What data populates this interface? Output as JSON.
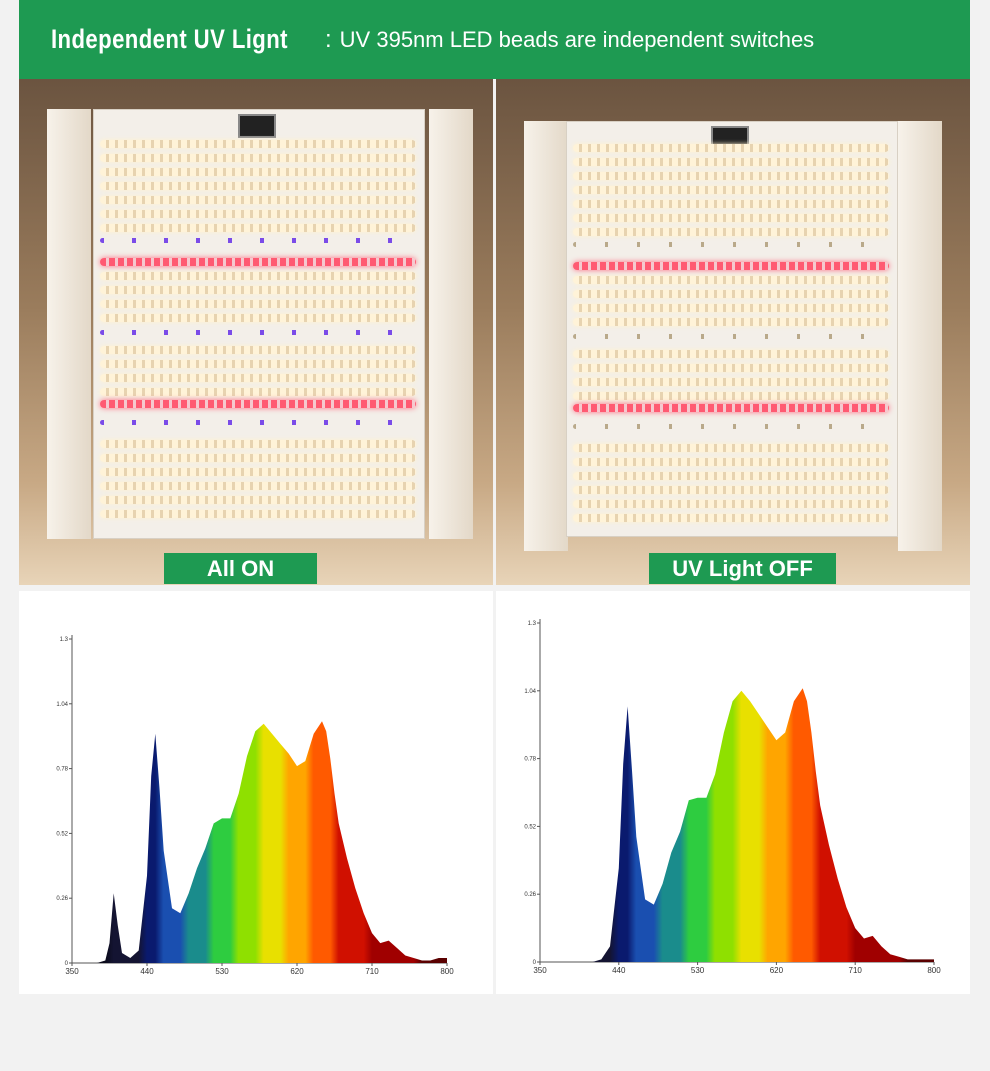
{
  "banner": {
    "title_bold": "Independent UV Lignt",
    "separator": ":",
    "title_rest": "UV 395nm LED beads are independent switches"
  },
  "panels": [
    {
      "label": "All ON",
      "uv_on": true
    },
    {
      "label": "UV Light OFF",
      "uv_on": false
    }
  ],
  "colors": {
    "accent_green": "#1e9a52",
    "led_warm": "#fff1d2",
    "led_red": "#ff4d6a",
    "led_uv": "#8a5cf0"
  },
  "chart_data": [
    {
      "type": "area",
      "title": "",
      "xlabel": "",
      "ylabel": "",
      "xlim": [
        350,
        800
      ],
      "ylim": [
        0,
        1.3
      ],
      "x_ticks": [
        "350",
        "440",
        "530",
        "620",
        "710",
        "800"
      ],
      "y_ticks": [
        "0",
        "0.26",
        "0.52",
        "0.78",
        "1.04",
        "1.3"
      ],
      "series": [
        {
          "x": [
            350,
            365,
            380,
            390,
            395,
            400,
            405,
            410,
            420,
            430,
            440,
            445,
            450,
            455,
            460,
            470,
            480,
            490,
            500,
            510,
            520,
            530,
            540,
            550,
            560,
            570,
            580,
            590,
            600,
            610,
            620,
            630,
            640,
            650,
            655,
            660,
            665,
            670,
            680,
            690,
            700,
            710,
            720,
            730,
            740,
            750,
            760,
            770,
            780,
            790,
            800
          ],
          "values": [
            0,
            0,
            0,
            0.01,
            0.08,
            0.28,
            0.15,
            0.04,
            0.02,
            0.05,
            0.35,
            0.75,
            0.92,
            0.7,
            0.45,
            0.22,
            0.2,
            0.28,
            0.38,
            0.46,
            0.56,
            0.58,
            0.58,
            0.68,
            0.83,
            0.93,
            0.96,
            0.92,
            0.88,
            0.84,
            0.79,
            0.81,
            0.92,
            0.97,
            0.93,
            0.82,
            0.68,
            0.56,
            0.42,
            0.3,
            0.2,
            0.12,
            0.08,
            0.09,
            0.06,
            0.03,
            0.02,
            0.01,
            0.01,
            0.02,
            0.02
          ]
        }
      ]
    },
    {
      "type": "area",
      "title": "",
      "xlabel": "",
      "ylabel": "",
      "xlim": [
        350,
        800
      ],
      "ylim": [
        0,
        1.3
      ],
      "x_ticks": [
        "350",
        "440",
        "530",
        "620",
        "710",
        "800"
      ],
      "y_ticks": [
        "0",
        "0.26",
        "0.52",
        "0.78",
        "1.04",
        "1.3"
      ],
      "series": [
        {
          "x": [
            350,
            365,
            380,
            390,
            395,
            400,
            405,
            410,
            420,
            430,
            440,
            445,
            450,
            455,
            460,
            470,
            480,
            490,
            500,
            510,
            520,
            530,
            540,
            550,
            560,
            570,
            580,
            590,
            600,
            610,
            620,
            630,
            640,
            650,
            655,
            660,
            665,
            670,
            680,
            690,
            700,
            710,
            720,
            730,
            740,
            750,
            760,
            770,
            780,
            790,
            800
          ],
          "values": [
            0,
            0,
            0,
            0,
            0,
            0,
            0,
            0,
            0.01,
            0.06,
            0.36,
            0.76,
            0.98,
            0.74,
            0.48,
            0.24,
            0.22,
            0.3,
            0.42,
            0.5,
            0.62,
            0.63,
            0.63,
            0.72,
            0.88,
            1.0,
            1.04,
            1.0,
            0.95,
            0.9,
            0.85,
            0.88,
            1.0,
            1.05,
            1.0,
            0.88,
            0.73,
            0.6,
            0.45,
            0.32,
            0.21,
            0.13,
            0.09,
            0.1,
            0.06,
            0.03,
            0.02,
            0.01,
            0.01,
            0.01,
            0.01
          ]
        }
      ]
    }
  ]
}
